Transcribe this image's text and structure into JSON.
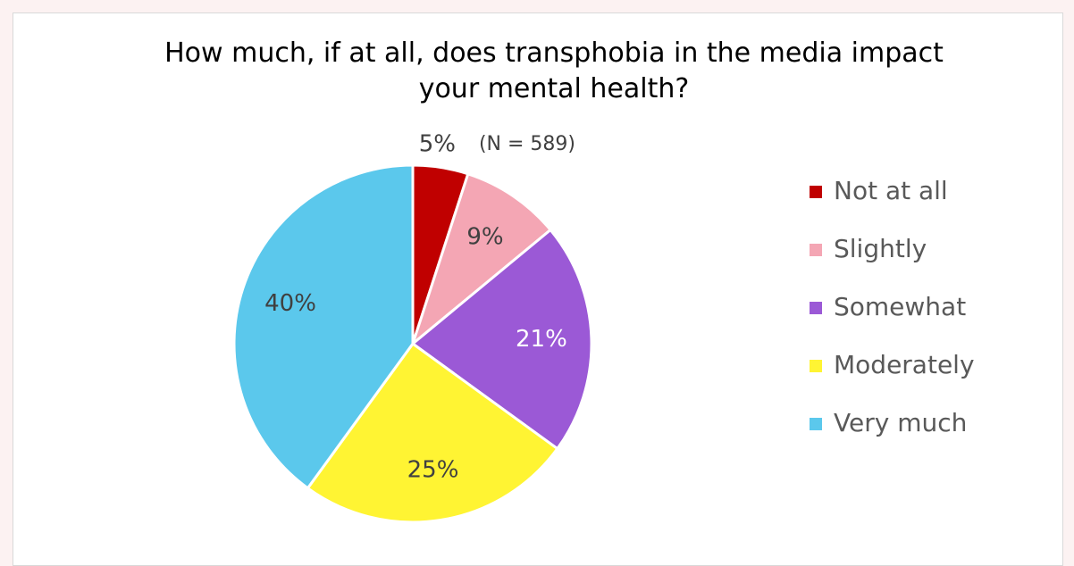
{
  "chart_data": {
    "type": "pie",
    "title": "How much, if at all, does transphobia in the media impact your mental health?",
    "annotation": "(N = 589)",
    "categories": [
      "Not at all",
      "Slightly",
      "Somewhat",
      "Moderately",
      "Very much"
    ],
    "values": [
      5,
      9,
      21,
      25,
      40
    ],
    "value_labels": [
      "5%",
      "9%",
      "21%",
      "25%",
      "40%"
    ],
    "colors": [
      "#c00000",
      "#f4a6b4",
      "#9b59d6",
      "#fff433",
      "#5bc8ec"
    ],
    "legend": "right"
  }
}
